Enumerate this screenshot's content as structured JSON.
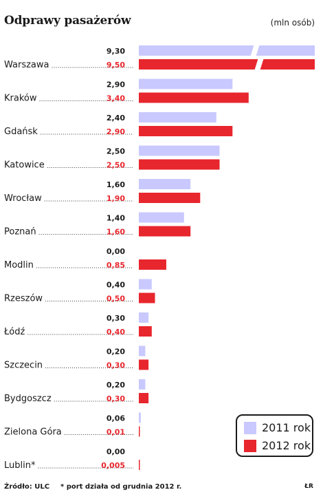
{
  "chart_data": {
    "type": "bar",
    "title": "Odprawy pasażerów",
    "unit": "(mln osób)",
    "categories": [
      "Warszawa",
      "Kraków",
      "Gdańsk",
      "Katowice",
      "Wrocław",
      "Poznań",
      "Modlin",
      "Rzeszów",
      "Łódź",
      "Szczecin",
      "Bydgoszcz",
      "Zielona Góra",
      "Lublin*"
    ],
    "series": [
      {
        "name": "2011 rok",
        "color": "#c9c9ff",
        "values": [
          9.3,
          2.9,
          2.4,
          2.5,
          1.6,
          1.4,
          0.0,
          0.4,
          0.3,
          0.2,
          0.2,
          0.06,
          0.0
        ],
        "labels": [
          "9,30",
          "2,90",
          "2,40",
          "2,50",
          "1,60",
          "1,40",
          "0,00",
          "0,40",
          "0,30",
          "0,20",
          "0,20",
          "0,06",
          "0,00"
        ]
      },
      {
        "name": "2012 rok",
        "color": "#e8262d",
        "values": [
          9.5,
          3.4,
          2.9,
          2.5,
          1.9,
          1.6,
          0.85,
          0.5,
          0.4,
          0.3,
          0.3,
          0.01,
          0.005
        ],
        "labels": [
          "9,50",
          "3,40",
          "2,90",
          "2,50",
          "1,90",
          "1,60",
          "0,85",
          "0,50",
          "0,40",
          "0,30",
          "0,30",
          "0,01",
          "0,005"
        ]
      }
    ],
    "axis_break": true,
    "grid": false,
    "legend_position": "bottom-right"
  },
  "source": "Źródło: ULC",
  "footnote": "* port działa od grudnia 2012 r.",
  "credit": "ŁR"
}
